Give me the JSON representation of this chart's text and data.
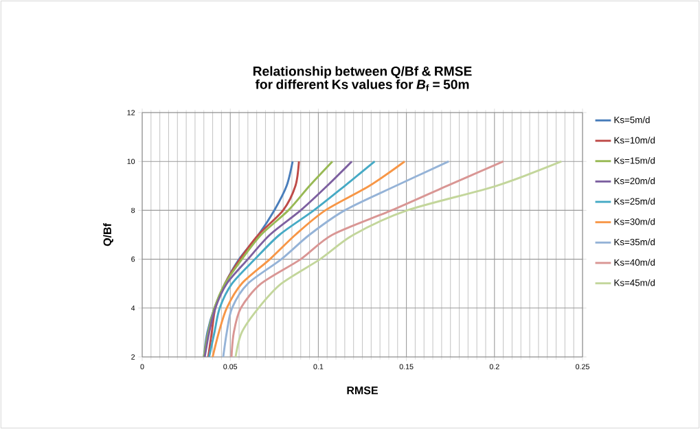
{
  "chart_data": {
    "type": "line",
    "title": "Relationship between Q/Bf & RMSE for different Ks values for *B*$_{f}$ = 50m",
    "xlabel": "RMSE",
    "ylabel": "Q/Bf",
    "xlim": [
      0,
      0.25
    ],
    "xticks": [
      0,
      0.05,
      0.1,
      0.15,
      0.2,
      0.25
    ],
    "ylim": [
      2,
      12
    ],
    "yticks": [
      2,
      4,
      6,
      8,
      10,
      12
    ],
    "grid": true,
    "legend": "right",
    "marker": "none",
    "line_style": "solid",
    "series": [
      {
        "name": "Ks=5m/d",
        "color": "#4a7ebb",
        "x": [
          0.035,
          0.037,
          0.041,
          0.047,
          0.055,
          0.066,
          0.075,
          0.082,
          0.0854
        ],
        "values": [
          2,
          3,
          4,
          5,
          6,
          7,
          8,
          9,
          10
        ]
      },
      {
        "name": "Ks=10m/d",
        "color": "#be4b48",
        "x": [
          0.0375,
          0.0395,
          0.0415,
          0.047,
          0.0555,
          0.066,
          0.08,
          0.087,
          0.089
        ],
        "values": [
          2,
          3,
          4,
          5,
          6,
          7,
          8,
          9,
          10
        ]
      },
      {
        "name": "Ks=15m/d",
        "color": "#98b954",
        "x": [
          0.035,
          0.0375,
          0.041,
          0.047,
          0.0566,
          0.0675,
          0.083,
          0.095,
          0.108
        ],
        "values": [
          2,
          3,
          4,
          5,
          6,
          7,
          8,
          9,
          10
        ]
      },
      {
        "name": "Ks=20m/d",
        "color": "#7d60a0",
        "x": [
          0.0355,
          0.038,
          0.0415,
          0.048,
          0.06,
          0.0725,
          0.09,
          0.105,
          0.119
        ],
        "values": [
          2,
          3,
          4,
          5,
          6,
          7,
          8,
          9,
          10
        ]
      },
      {
        "name": "Ks=25m/d",
        "color": "#46aac5",
        "x": [
          0.038,
          0.041,
          0.044,
          0.051,
          0.064,
          0.078,
          0.0975,
          0.115,
          0.132
        ],
        "values": [
          2,
          3,
          4,
          5,
          6,
          7,
          8,
          9,
          10
        ]
      },
      {
        "name": "Ks=30m/d",
        "color": "#f79646",
        "x": [
          0.04,
          0.0435,
          0.048,
          0.0565,
          0.0725,
          0.087,
          0.104,
          0.129,
          0.149
        ],
        "values": [
          2,
          3,
          4,
          5,
          6,
          7,
          8,
          9,
          10
        ]
      },
      {
        "name": "Ks=35m/d",
        "color": "#95b3d7",
        "x": [
          0.046,
          0.048,
          0.051,
          0.06,
          0.079,
          0.095,
          0.115,
          0.144,
          0.174
        ],
        "values": [
          2,
          3,
          4,
          5,
          6,
          7,
          8,
          9,
          10
        ]
      },
      {
        "name": "Ks=40m/d",
        "color": "#d99694",
        "x": [
          0.0507,
          0.052,
          0.056,
          0.0675,
          0.09,
          0.108,
          0.1416,
          0.173,
          0.205
        ],
        "values": [
          2,
          3,
          4,
          5,
          6,
          7,
          8,
          9,
          10
        ]
      },
      {
        "name": "Ks=45m/d",
        "color": "#c3d69b",
        "x": [
          0.053,
          0.0565,
          0.066,
          0.079,
          0.101,
          0.12,
          0.1505,
          0.201,
          0.238
        ],
        "values": [
          2,
          3,
          4,
          5,
          6,
          7,
          8,
          9,
          10
        ]
      }
    ]
  }
}
